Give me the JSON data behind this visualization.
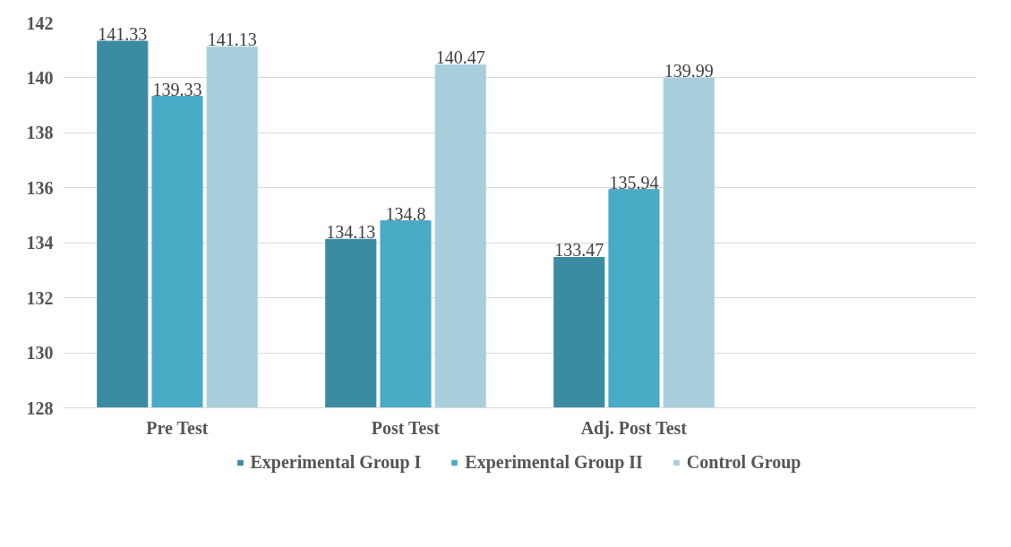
{
  "chart_data": {
    "type": "bar",
    "categories": [
      "Pre Test",
      "Post Test",
      "Adj. Post Test",
      null
    ],
    "series": [
      {
        "name": "Experimental Group I",
        "color": "#3b8ba2",
        "values": [
          141.33,
          134.13,
          133.47,
          null
        ]
      },
      {
        "name": "Experimental Group II",
        "color": "#4aabc6",
        "values": [
          139.33,
          134.8,
          135.94,
          null
        ]
      },
      {
        "name": "Control Group",
        "color": "#a8cedc",
        "values": [
          141.13,
          140.47,
          139.99,
          null
        ]
      }
    ],
    "ylim": [
      128,
      142
    ],
    "yticks": [
      128,
      130,
      132,
      134,
      136,
      138,
      140,
      142
    ],
    "grid": "y",
    "legend": "bottom",
    "data_labels": true
  }
}
